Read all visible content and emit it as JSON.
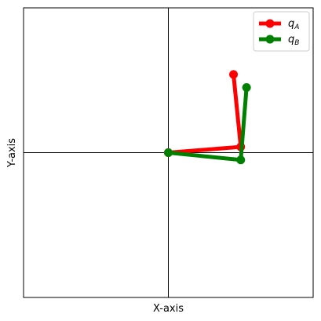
{
  "chart_data": {
    "type": "line",
    "title": "",
    "xlabel": "X-axis",
    "ylabel": "Y-axis",
    "xlim": [
      -1,
      1
    ],
    "ylim": [
      -1,
      1
    ],
    "grid": false,
    "legend_position": "top-right",
    "crosshair_lines": true,
    "series": [
      {
        "name": "q_A",
        "label_main": "q",
        "label_sub": "A",
        "color": "#ff0000",
        "points": [
          [
            0,
            0
          ],
          [
            0.5,
            0.04
          ],
          [
            0.45,
            0.54
          ]
        ]
      },
      {
        "name": "q_B",
        "label_main": "q",
        "label_sub": "B",
        "color": "#008000",
        "points": [
          [
            0,
            0
          ],
          [
            0.5,
            -0.05
          ],
          [
            0.54,
            0.45
          ]
        ]
      }
    ]
  }
}
